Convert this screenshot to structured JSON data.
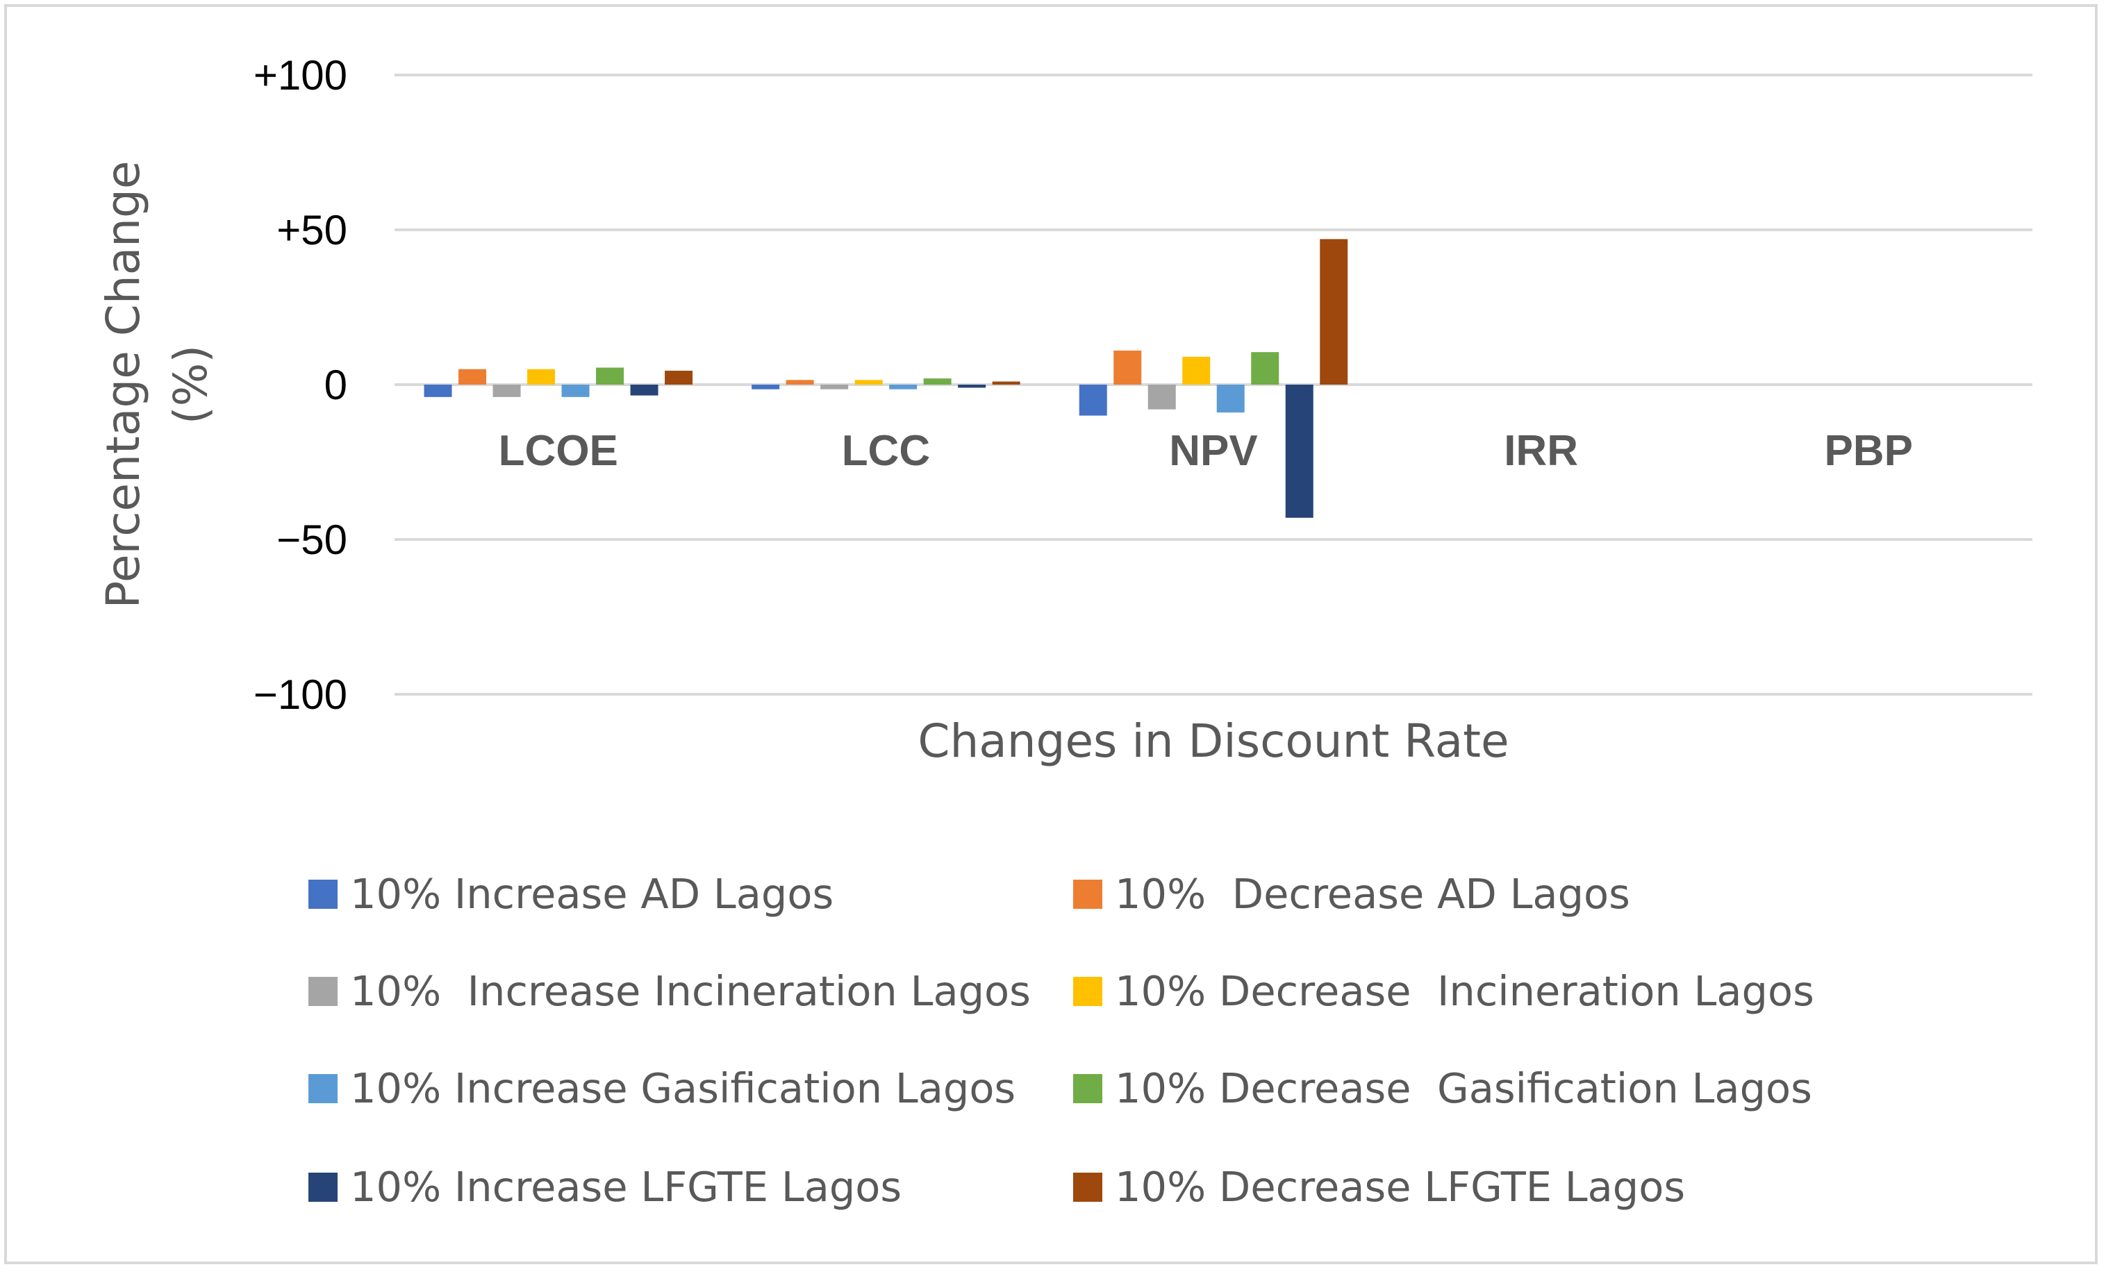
{
  "chart_data": {
    "type": "bar",
    "title": "",
    "xlabel": "Changes in Discount Rate",
    "ylabel_line1": "Percentage Change",
    "ylabel_line2": "(%)",
    "ylim": [
      -100,
      100
    ],
    "yticks": [
      100,
      50,
      0,
      -50,
      -100
    ],
    "ytick_labels": [
      "+100",
      "+50",
      "0",
      "−50",
      "−100"
    ],
    "grid": true,
    "legend_position": "bottom",
    "categories": [
      "LCOE",
      "LCC",
      "NPV",
      "IRR",
      "PBP"
    ],
    "series": [
      {
        "name": "10% Increase AD Lagos",
        "color": "#4472C4",
        "values": [
          -4,
          -1.5,
          -10,
          0,
          0
        ]
      },
      {
        "name": "10%  Decrease AD Lagos",
        "color": "#ED7D31",
        "values": [
          5,
          1.5,
          11,
          0,
          0
        ]
      },
      {
        "name": "10%  Increase Incineration Lagos",
        "color": "#A5A5A5",
        "values": [
          -4,
          -1.5,
          -8,
          0,
          0
        ]
      },
      {
        "name": "10% Decrease  Incineration Lagos",
        "color": "#FFC000",
        "values": [
          5,
          1.5,
          9,
          0,
          0
        ]
      },
      {
        "name": "10% Increase Gasification Lagos",
        "color": "#5B9BD5",
        "values": [
          -4,
          -1.5,
          -9,
          0,
          0
        ]
      },
      {
        "name": "10% Decrease  Gasification Lagos",
        "color": "#70AD47",
        "values": [
          5.5,
          2,
          10.5,
          0,
          0
        ]
      },
      {
        "name": "10% Increase LFGTE Lagos",
        "color": "#264478",
        "values": [
          -3.5,
          -1,
          -43,
          0,
          0
        ]
      },
      {
        "name": "10% Decrease LFGTE Lagos",
        "color": "#9E480E",
        "values": [
          4.5,
          1,
          47,
          0,
          0
        ]
      }
    ]
  }
}
